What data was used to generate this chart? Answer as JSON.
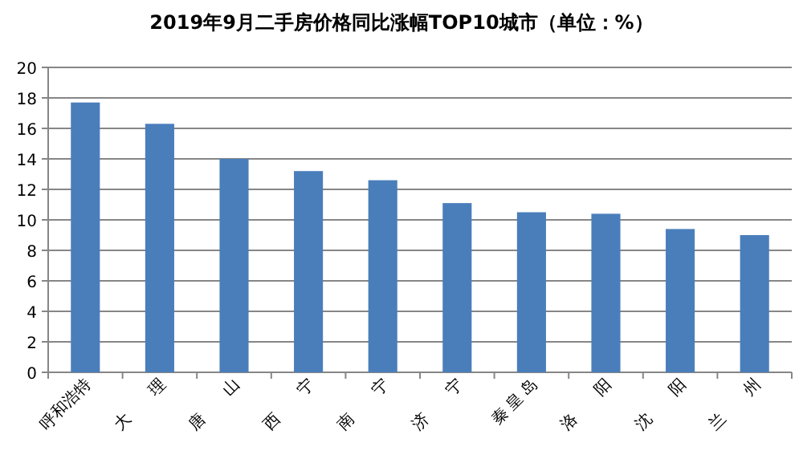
{
  "chart_data": {
    "type": "bar",
    "title": "2019年9月二手房价格同比涨幅TOP10城市（单位：%）",
    "categories": [
      "呼和浩特",
      "大　　理",
      "唐　　山",
      "西　　宁",
      "南　　宁",
      "济　　宁",
      "秦 皇 岛",
      "洛　　阳",
      "沈　　阳",
      "兰　　州"
    ],
    "values": [
      17.7,
      16.3,
      14.0,
      13.2,
      12.6,
      11.1,
      10.5,
      10.4,
      9.4,
      9.0
    ],
    "color": "#4a7ebb",
    "ylim": [
      0,
      20
    ],
    "yticks": [
      0,
      2,
      4,
      6,
      8,
      10,
      12,
      14,
      16,
      18,
      20
    ],
    "grid": "y"
  }
}
